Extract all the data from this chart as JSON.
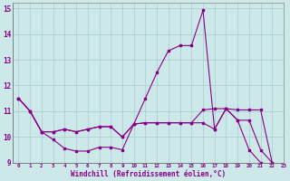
{
  "xlabel": "Windchill (Refroidissement éolien,°C)",
  "xlim": [
    -0.5,
    23
  ],
  "ylim": [
    9,
    15.2
  ],
  "yticks": [
    9,
    10,
    11,
    12,
    13,
    14,
    15
  ],
  "xticks": [
    0,
    1,
    2,
    3,
    4,
    5,
    6,
    7,
    8,
    9,
    10,
    11,
    12,
    13,
    14,
    15,
    16,
    17,
    18,
    19,
    20,
    21,
    22,
    23
  ],
  "background_color": "#cce8e8",
  "grid_color": "#aacccc",
  "line_color": "#880088",
  "line1_x": [
    0,
    1,
    2,
    3,
    4,
    5,
    6,
    7,
    8,
    9,
    10,
    11,
    12,
    13,
    14,
    15,
    16,
    17,
    18,
    19,
    20,
    21,
    22,
    23
  ],
  "line1_y": [
    11.5,
    11.0,
    10.2,
    9.9,
    9.55,
    9.45,
    9.45,
    9.6,
    9.6,
    9.5,
    10.5,
    11.5,
    12.5,
    13.35,
    13.55,
    13.55,
    14.92,
    10.3,
    11.1,
    10.65,
    9.5,
    9.0,
    8.85,
    8.8
  ],
  "line2_x": [
    0,
    1,
    2,
    3,
    4,
    5,
    6,
    7,
    8,
    9,
    10,
    11,
    12,
    13,
    14,
    15,
    16,
    17,
    18,
    19,
    20,
    21,
    22,
    23
  ],
  "line2_y": [
    11.5,
    11.0,
    10.2,
    10.2,
    10.3,
    10.2,
    10.3,
    10.4,
    10.4,
    10.0,
    10.5,
    10.55,
    10.55,
    10.55,
    10.55,
    10.55,
    11.05,
    11.1,
    11.1,
    10.65,
    10.65,
    9.5,
    9.0,
    8.8
  ],
  "line3_x": [
    0,
    1,
    2,
    3,
    4,
    5,
    6,
    7,
    8,
    9,
    10,
    11,
    12,
    13,
    14,
    15,
    16,
    17,
    18,
    19,
    20,
    21,
    22,
    23
  ],
  "line3_y": [
    11.5,
    11.0,
    10.2,
    10.2,
    10.3,
    10.2,
    10.3,
    10.4,
    10.4,
    10.0,
    10.5,
    10.55,
    10.55,
    10.55,
    10.55,
    10.55,
    10.55,
    10.3,
    11.1,
    11.05,
    11.05,
    11.05,
    9.0,
    8.8
  ]
}
